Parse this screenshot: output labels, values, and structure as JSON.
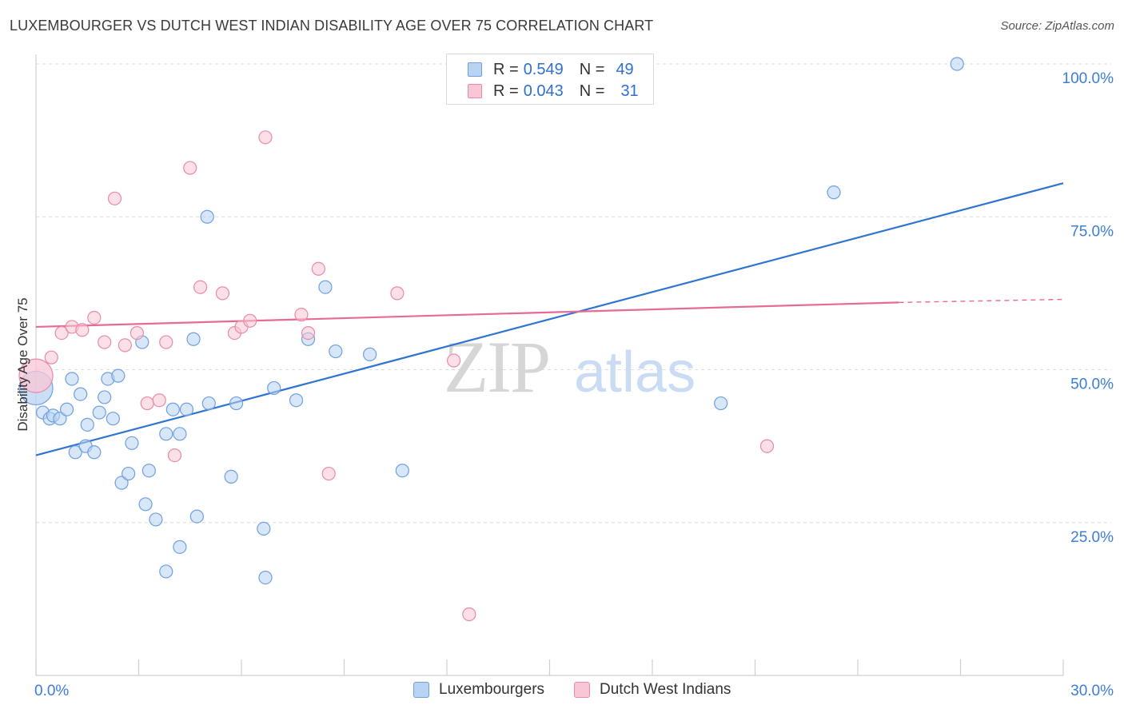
{
  "title": "LUXEMBOURGER VS DUTCH WEST INDIAN DISABILITY AGE OVER 75 CORRELATION CHART",
  "source": "Source: ZipAtlas.com",
  "watermark": {
    "zip": "ZIP",
    "atlas": "atlas"
  },
  "legend": {
    "rows": [
      {
        "r_label": "R =",
        "r_value": "0.549",
        "n_label": "N =",
        "n_value": "49"
      },
      {
        "r_label": "R =",
        "r_value": "0.043",
        "n_label": "N =",
        "n_value": "31"
      }
    ]
  },
  "bottom_legend": [
    "Luxembourgers",
    "Dutch West Indians"
  ],
  "colors": {
    "blue_fill": "#b8d3f3",
    "blue_stroke": "#6f9fe0",
    "blue_line": "#2f74d0",
    "pink_fill": "#f8c6d5",
    "pink_stroke": "#e98aa8",
    "pink_line": "#e76a93",
    "tick_label": "#3b7dd8",
    "grid": "#dcdcdc"
  },
  "chart_data": {
    "type": "scatter",
    "title": "LUXEMBOURGER VS DUTCH WEST INDIAN DISABILITY AGE OVER 75 CORRELATION CHART",
    "xlabel": "",
    "ylabel": "Disability Age Over 75",
    "xlim": [
      0,
      30
    ],
    "ylim": [
      0,
      100
    ],
    "x_tick_labels": [
      "0.0%",
      "30.0%"
    ],
    "y_ticks": [
      25,
      50,
      75,
      100
    ],
    "y_tick_labels": [
      "25.0%",
      "50.0%",
      "75.0%",
      "100.0%"
    ],
    "series": [
      {
        "name": "Luxembourgers",
        "r": 0.549,
        "n": 49,
        "trend": {
          "x": [
            0,
            30
          ],
          "y": [
            36.0,
            80.5
          ]
        },
        "points": [
          {
            "x": 0.0,
            "y": 47.0,
            "big": true
          },
          {
            "x": 0.2,
            "y": 43.0
          },
          {
            "x": 0.4,
            "y": 42.0
          },
          {
            "x": 0.5,
            "y": 42.5
          },
          {
            "x": 0.7,
            "y": 42.0
          },
          {
            "x": 0.9,
            "y": 43.5
          },
          {
            "x": 1.05,
            "y": 48.5
          },
          {
            "x": 1.15,
            "y": 36.5
          },
          {
            "x": 1.3,
            "y": 46.0
          },
          {
            "x": 1.45,
            "y": 37.5
          },
          {
            "x": 1.5,
            "y": 41.0
          },
          {
            "x": 1.7,
            "y": 36.5
          },
          {
            "x": 1.85,
            "y": 43.0
          },
          {
            "x": 2.0,
            "y": 45.5
          },
          {
            "x": 2.1,
            "y": 48.5
          },
          {
            "x": 2.25,
            "y": 42.0
          },
          {
            "x": 2.4,
            "y": 49.0
          },
          {
            "x": 2.5,
            "y": 31.5
          },
          {
            "x": 2.7,
            "y": 33.0
          },
          {
            "x": 2.8,
            "y": 38.0
          },
          {
            "x": 3.1,
            "y": 54.5
          },
          {
            "x": 3.2,
            "y": 28.0
          },
          {
            "x": 3.3,
            "y": 33.5
          },
          {
            "x": 3.5,
            "y": 25.5
          },
          {
            "x": 3.8,
            "y": 39.5
          },
          {
            "x": 3.8,
            "y": 17.0
          },
          {
            "x": 4.0,
            "y": 43.5
          },
          {
            "x": 4.2,
            "y": 21.0
          },
          {
            "x": 4.2,
            "y": 39.5
          },
          {
            "x": 4.4,
            "y": 43.5
          },
          {
            "x": 4.6,
            "y": 55.0
          },
          {
            "x": 4.7,
            "y": 26.0
          },
          {
            "x": 5.0,
            "y": 75.0
          },
          {
            "x": 5.05,
            "y": 44.5
          },
          {
            "x": 5.7,
            "y": 32.5
          },
          {
            "x": 5.85,
            "y": 44.5
          },
          {
            "x": 6.65,
            "y": 24.0
          },
          {
            "x": 6.7,
            "y": 16.0
          },
          {
            "x": 6.95,
            "y": 47.0
          },
          {
            "x": 7.6,
            "y": 45.0
          },
          {
            "x": 7.95,
            "y": 55.0
          },
          {
            "x": 8.45,
            "y": 63.5
          },
          {
            "x": 8.75,
            "y": 53.0
          },
          {
            "x": 9.75,
            "y": 52.5
          },
          {
            "x": 10.7,
            "y": 33.5
          },
          {
            "x": 20.0,
            "y": 44.5
          },
          {
            "x": 23.3,
            "y": 79.0
          },
          {
            "x": 26.9,
            "y": 100.0
          }
        ]
      },
      {
        "name": "Dutch West Indians",
        "r": 0.043,
        "n": 31,
        "trend": {
          "x": [
            0,
            25.2
          ],
          "y": [
            57.0,
            61.0
          ],
          "dash_to": [
            30,
            61.5
          ]
        },
        "points": [
          {
            "x": 0.0,
            "y": 49.0,
            "big": true
          },
          {
            "x": 0.45,
            "y": 52.0
          },
          {
            "x": 0.75,
            "y": 56.0
          },
          {
            "x": 1.05,
            "y": 57.0
          },
          {
            "x": 1.35,
            "y": 56.5
          },
          {
            "x": 1.7,
            "y": 58.5
          },
          {
            "x": 2.0,
            "y": 54.5
          },
          {
            "x": 2.3,
            "y": 78.0
          },
          {
            "x": 2.6,
            "y": 54.0
          },
          {
            "x": 2.95,
            "y": 56.0
          },
          {
            "x": 3.25,
            "y": 44.5
          },
          {
            "x": 3.6,
            "y": 45.0
          },
          {
            "x": 3.8,
            "y": 54.5
          },
          {
            "x": 4.05,
            "y": 36.0
          },
          {
            "x": 4.5,
            "y": 83.0
          },
          {
            "x": 4.8,
            "y": 63.5
          },
          {
            "x": 5.45,
            "y": 62.5
          },
          {
            "x": 5.8,
            "y": 56.0
          },
          {
            "x": 6.0,
            "y": 57.0
          },
          {
            "x": 6.25,
            "y": 58.0
          },
          {
            "x": 6.7,
            "y": 88.0
          },
          {
            "x": 7.75,
            "y": 59.0
          },
          {
            "x": 7.95,
            "y": 56.0
          },
          {
            "x": 8.25,
            "y": 66.5
          },
          {
            "x": 8.55,
            "y": 33.0
          },
          {
            "x": 10.55,
            "y": 62.5
          },
          {
            "x": 12.2,
            "y": 51.5
          },
          {
            "x": 12.65,
            "y": 10.0
          },
          {
            "x": 21.35,
            "y": 37.5
          }
        ]
      }
    ]
  }
}
